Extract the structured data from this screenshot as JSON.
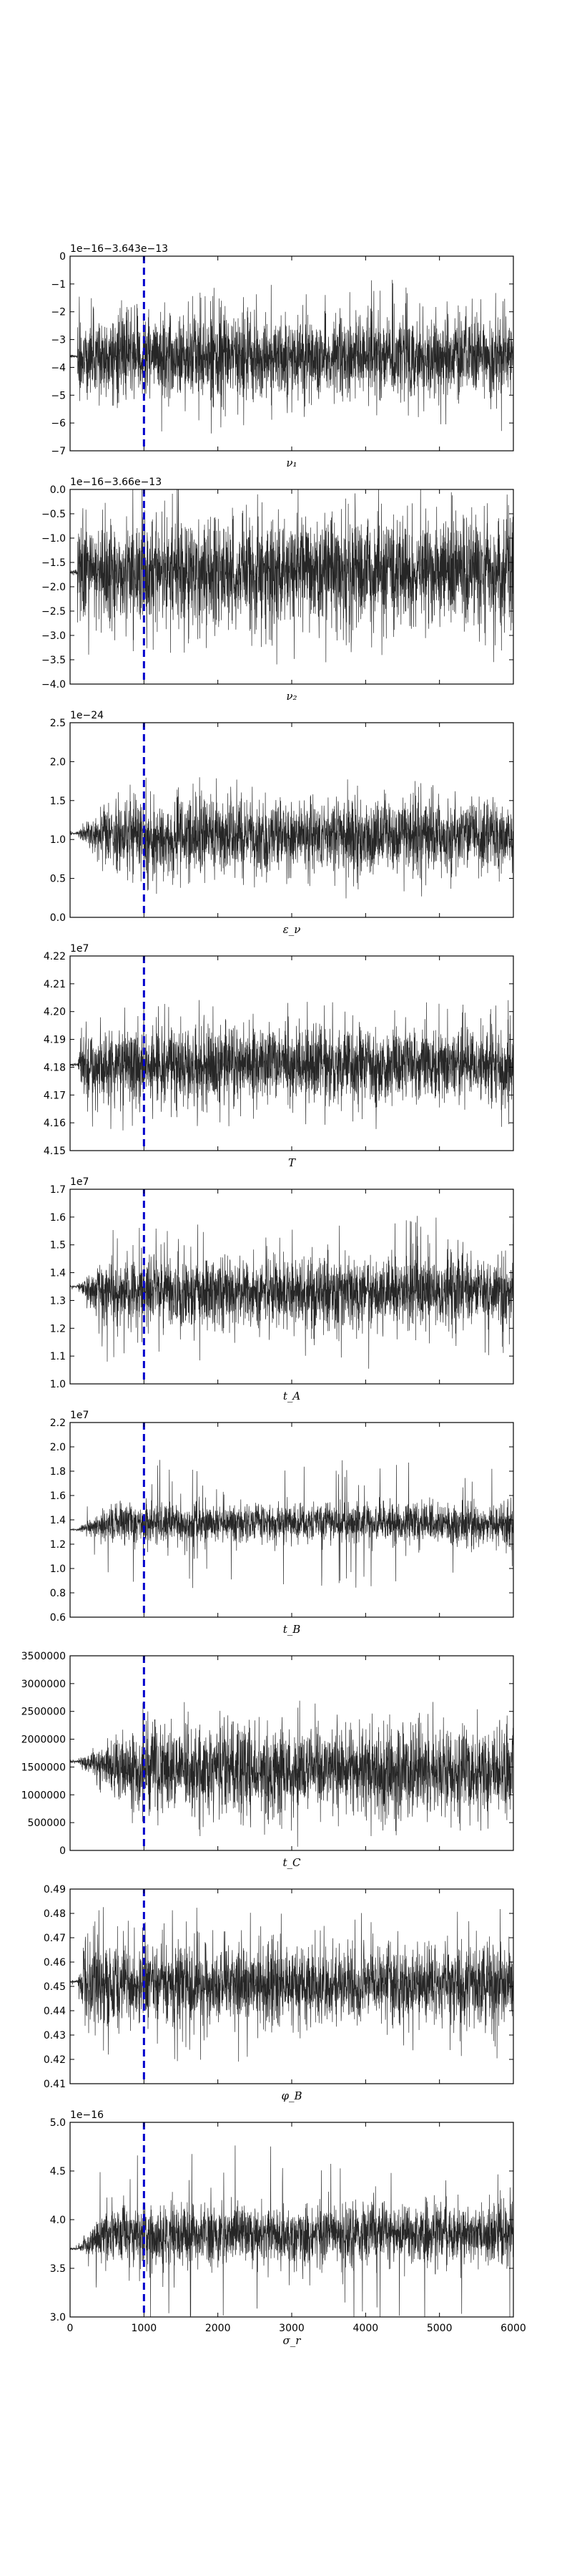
{
  "chart_data": [
    {
      "type": "line",
      "offset_text": "1e−16−3.643e−13",
      "xlabel": "ν₁",
      "ylim": [
        -7,
        0
      ],
      "yticks": [
        "0",
        "−1",
        "−2",
        "−3",
        "−4",
        "−5",
        "−6",
        "−7"
      ],
      "xlim": [
        0,
        6000
      ],
      "xtick_labels": [],
      "burn_in_x": 1000,
      "trace": {
        "start": -3.6,
        "center": -3.6,
        "band_half_width": 1.2,
        "spike_extent": 2.8,
        "converge_x": 0
      }
    },
    {
      "type": "line",
      "offset_text": "1e−16−3.66e−13",
      "xlabel": "ν₂",
      "ylim": [
        -4.0,
        0.0
      ],
      "yticks": [
        "0.0",
        "−0.5",
        "−1.0",
        "−1.5",
        "−2.0",
        "−2.5",
        "−3.0",
        "−3.5",
        "−4.0"
      ],
      "xlim": [
        0,
        6000
      ],
      "xtick_labels": [],
      "burn_in_x": 1000,
      "trace": {
        "start": -1.7,
        "center": -1.7,
        "band_half_width": 0.9,
        "spike_extent": 1.9,
        "converge_x": 0
      }
    },
    {
      "type": "line",
      "offset_text": "1e−24",
      "xlabel": "ε_ν",
      "ylim": [
        0.0,
        2.5
      ],
      "yticks": [
        "2.5",
        "2.0",
        "1.5",
        "1.0",
        "0.5",
        "0.0"
      ],
      "xlim": [
        0,
        6000
      ],
      "xtick_labels": [],
      "burn_in_x": 1000,
      "trace": {
        "start": 1.08,
        "center": 1.05,
        "band_half_width": 0.38,
        "spike_extent": 0.75,
        "converge_x": 500
      }
    },
    {
      "type": "line",
      "offset_text": "1e7",
      "xlabel": "T",
      "ylim": [
        4.15,
        4.22
      ],
      "yticks": [
        "4.22",
        "4.21",
        "4.20",
        "4.19",
        "4.18",
        "4.17",
        "4.16",
        "4.15"
      ],
      "xlim": [
        0,
        6000
      ],
      "xtick_labels": [],
      "burn_in_x": 1000,
      "trace": {
        "start": 4.181,
        "center": 4.181,
        "band_half_width": 0.011,
        "spike_extent": 0.024,
        "converge_x": 150
      }
    },
    {
      "type": "line",
      "offset_text": "1e7",
      "xlabel": "t_A",
      "ylim": [
        1.0,
        1.7
      ],
      "yticks": [
        "1.7",
        "1.6",
        "1.5",
        "1.4",
        "1.3",
        "1.2",
        "1.1",
        "1.0"
      ],
      "xlim": [
        0,
        6000
      ],
      "xtick_labels": [],
      "burn_in_x": 1000,
      "trace": {
        "start": 1.35,
        "center": 1.33,
        "band_half_width": 0.1,
        "spike_extent": 0.28,
        "converge_x": 500
      }
    },
    {
      "type": "line",
      "offset_text": "1e7",
      "xlabel": "t_B",
      "ylim": [
        0.6,
        2.2
      ],
      "yticks": [
        "2.2",
        "2.0",
        "1.8",
        "1.6",
        "1.4",
        "1.2",
        "1.0",
        "0.8",
        "0.6"
      ],
      "xlim": [
        0,
        6000
      ],
      "xtick_labels": [],
      "burn_in_x": 1000,
      "trace": {
        "start": 1.32,
        "center": 1.37,
        "band_half_width": 0.13,
        "spike_extent": 0.55,
        "converge_x": 550
      }
    },
    {
      "type": "line",
      "offset_text": "",
      "xlabel": "t_C",
      "ylim": [
        0,
        3500000
      ],
      "yticks": [
        "3500000",
        "3000000",
        "2500000",
        "2000000",
        "1500000",
        "1000000",
        "500000",
        "0"
      ],
      "xlim": [
        0,
        6000
      ],
      "xtick_labels": [],
      "burn_in_x": 1000,
      "trace": {
        "start": 1600000,
        "center": 1450000,
        "band_half_width": 650000,
        "spike_extent": 1200000,
        "converge_x": 900
      }
    },
    {
      "type": "line",
      "offset_text": "",
      "xlabel": "φ_B",
      "ylim": [
        0.41,
        0.49
      ],
      "yticks": [
        "0.49",
        "0.48",
        "0.47",
        "0.46",
        "0.45",
        "0.44",
        "0.43",
        "0.42",
        "0.41"
      ],
      "xlim": [
        0,
        6000
      ],
      "xtick_labels": [],
      "burn_in_x": 1000,
      "trace": {
        "start": 0.452,
        "center": 0.451,
        "band_half_width": 0.013,
        "spike_extent": 0.032,
        "converge_x": 200
      }
    },
    {
      "type": "line",
      "offset_text": "1e−16",
      "xlabel": "σ_r",
      "ylim": [
        3.0,
        5.0
      ],
      "yticks": [
        "5.0",
        "4.5",
        "4.0",
        "3.5",
        "3.0"
      ],
      "xlim": [
        0,
        6000
      ],
      "xtick_labels": [
        "0",
        "1000",
        "2000",
        "3000",
        "4000",
        "5000",
        "6000"
      ],
      "burn_in_x": 1000,
      "trace": {
        "start": 3.7,
        "center": 3.85,
        "band_half_width": 0.25,
        "spike_extent": 0.95,
        "converge_x": 500
      }
    }
  ],
  "colors": {
    "trace": "#000000",
    "burn_in_line": "#0000cc",
    "axes": "#000000",
    "background": "#ffffff"
  }
}
